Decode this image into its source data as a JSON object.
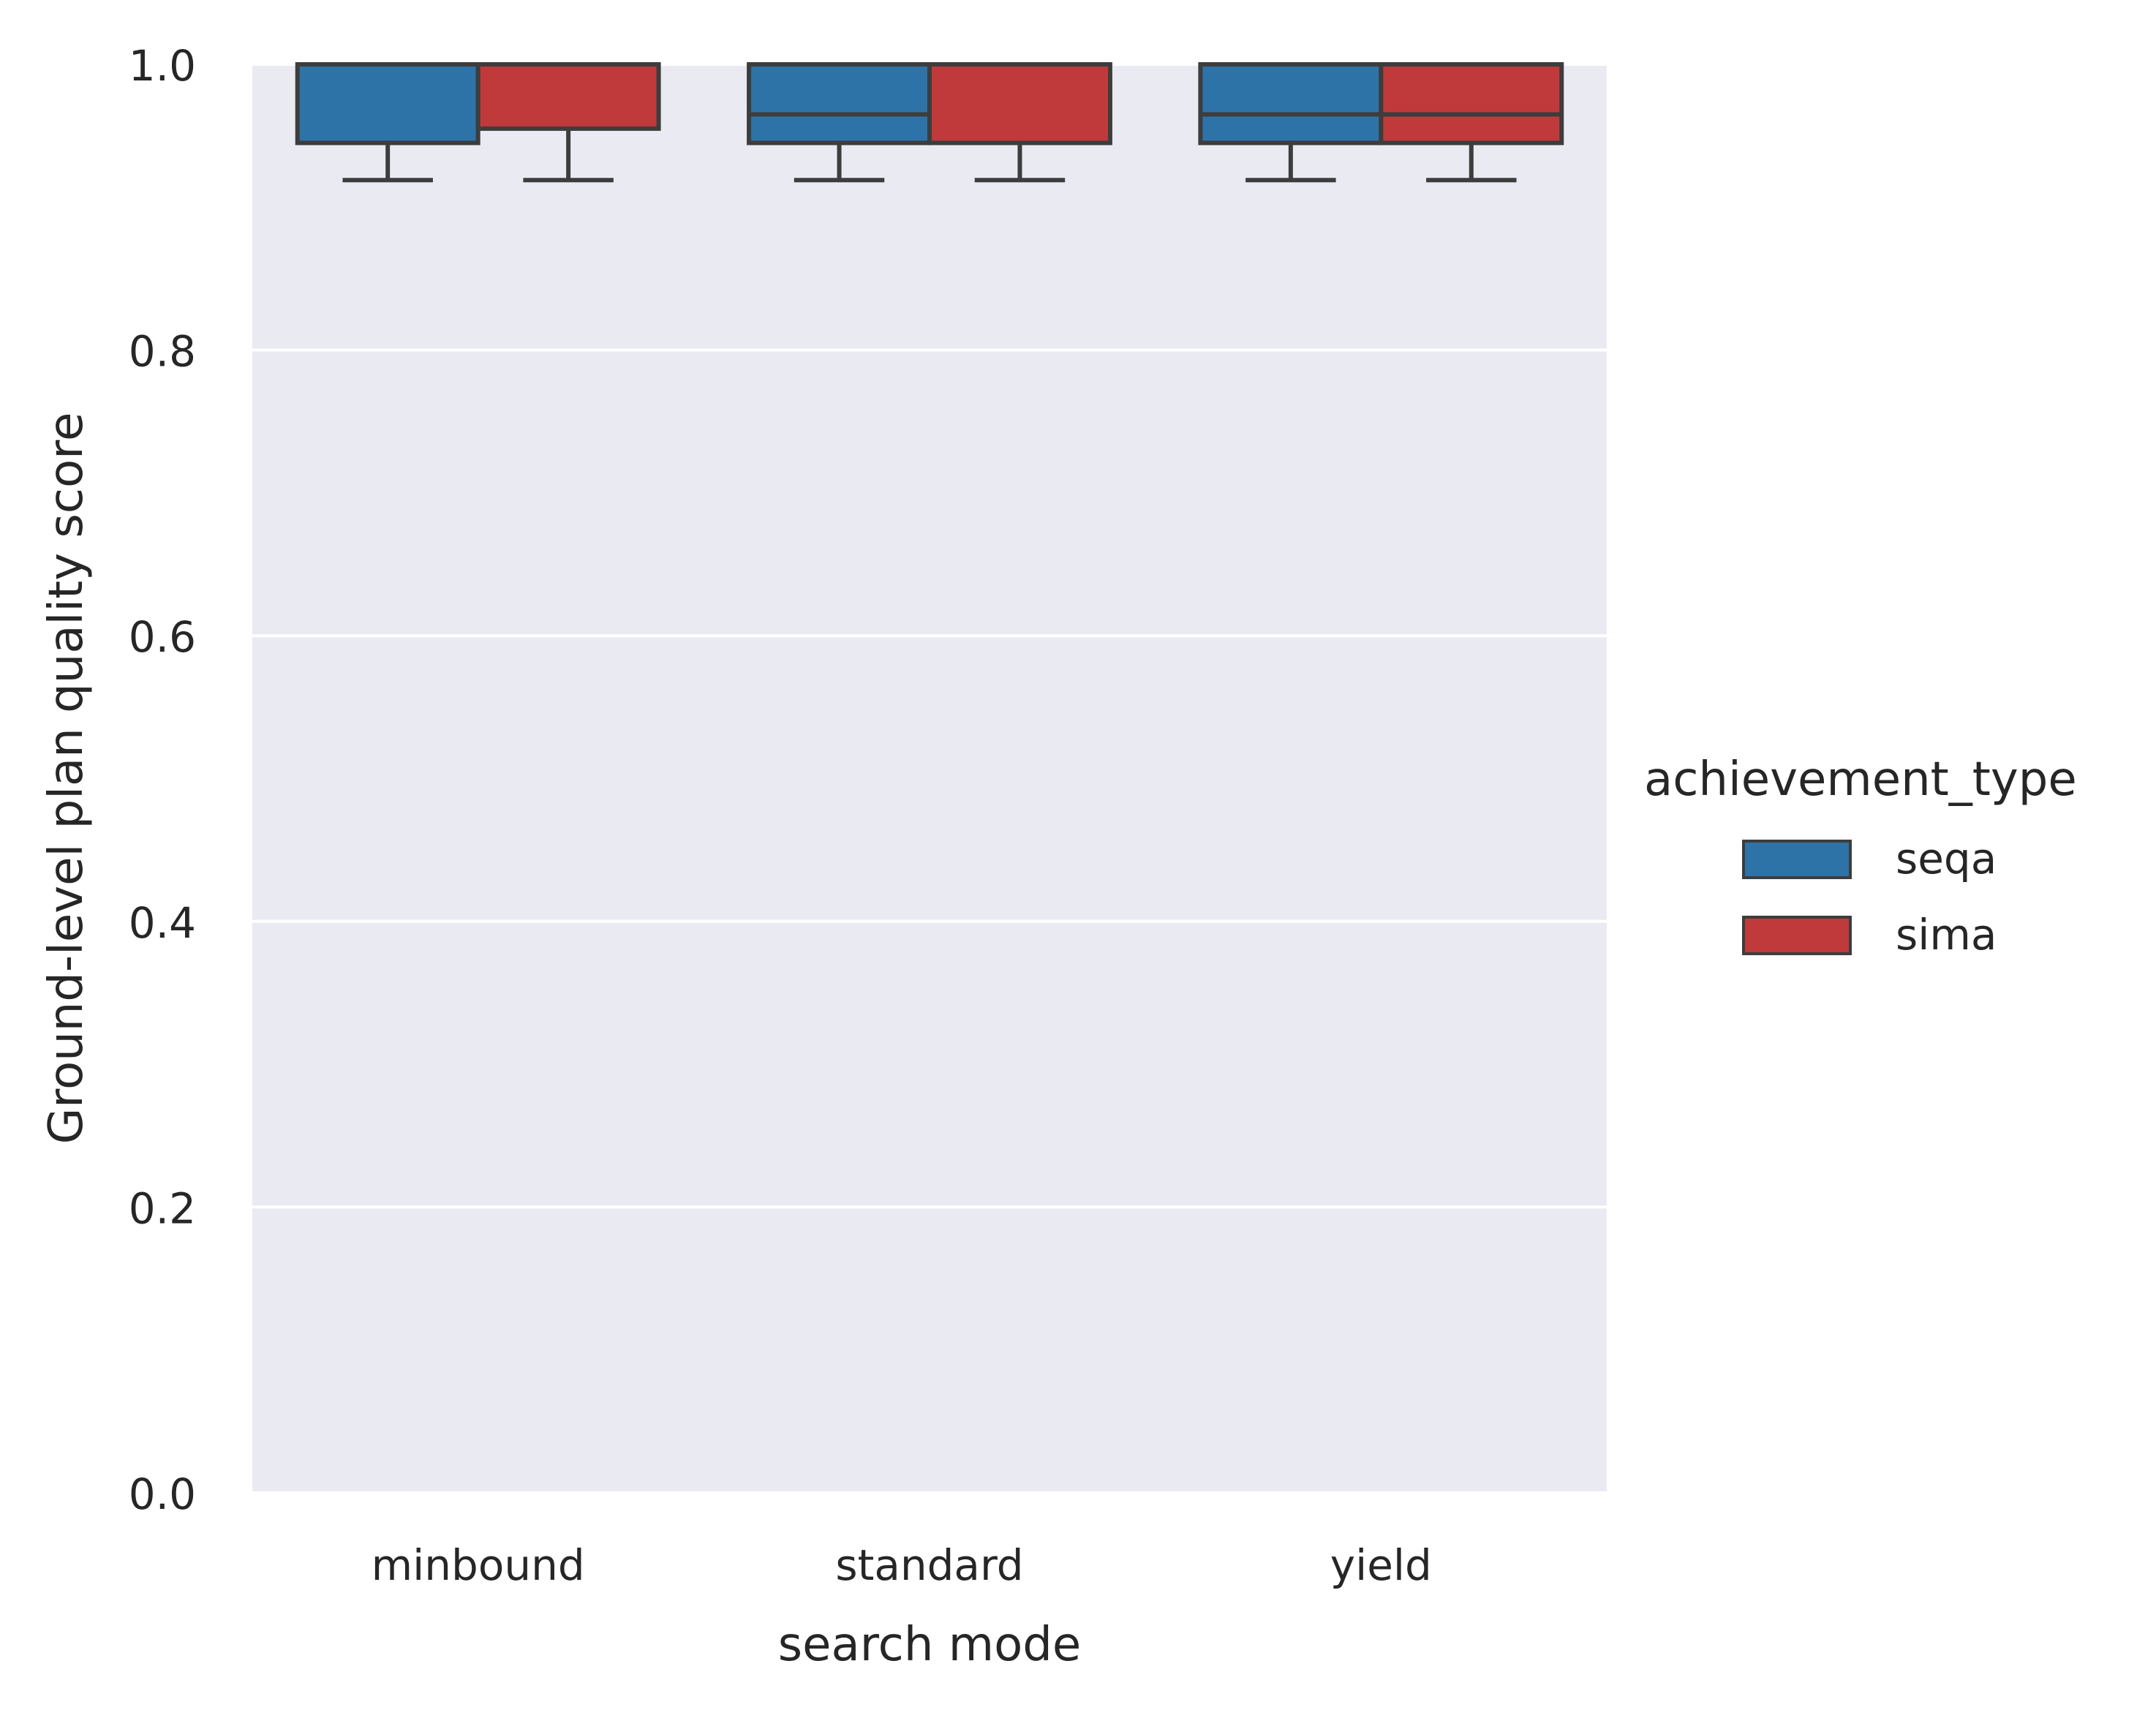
{
  "chart_data": {
    "type": "box",
    "title": "",
    "xlabel": "search mode",
    "ylabel": "Ground-level plan quality score",
    "ylim": [
      0.0,
      1.0
    ],
    "yticks": [
      "0.0",
      "0.2",
      "0.4",
      "0.6",
      "0.8",
      "1.0"
    ],
    "categories": [
      "minbound",
      "standard",
      "yield"
    ],
    "grid": true,
    "legend": {
      "title": "achievement_type",
      "placement": "center-right outside"
    },
    "series": [
      {
        "name": "seqa",
        "color": "#2e73a8",
        "boxes": [
          {
            "whislo": 0.919,
            "q1": 0.945,
            "med": 1.0,
            "q3": 1.0,
            "whishi": 1.0
          },
          {
            "whislo": 0.919,
            "q1": 0.945,
            "med": 0.965,
            "q3": 1.0,
            "whishi": 1.0
          },
          {
            "whislo": 0.919,
            "q1": 0.945,
            "med": 0.965,
            "q3": 1.0,
            "whishi": 1.0
          }
        ]
      },
      {
        "name": "sima",
        "color": "#c03a3b",
        "boxes": [
          {
            "whislo": 0.919,
            "q1": 0.955,
            "med": 1.0,
            "q3": 1.0,
            "whishi": 1.0
          },
          {
            "whislo": 0.919,
            "q1": 0.945,
            "med": 1.0,
            "q3": 1.0,
            "whishi": 1.0
          },
          {
            "whislo": 0.919,
            "q1": 0.945,
            "med": 0.965,
            "q3": 1.0,
            "whishi": 1.0
          }
        ]
      }
    ],
    "plot_background": "#eaeaf2",
    "line_color": "#3d3d3d"
  }
}
